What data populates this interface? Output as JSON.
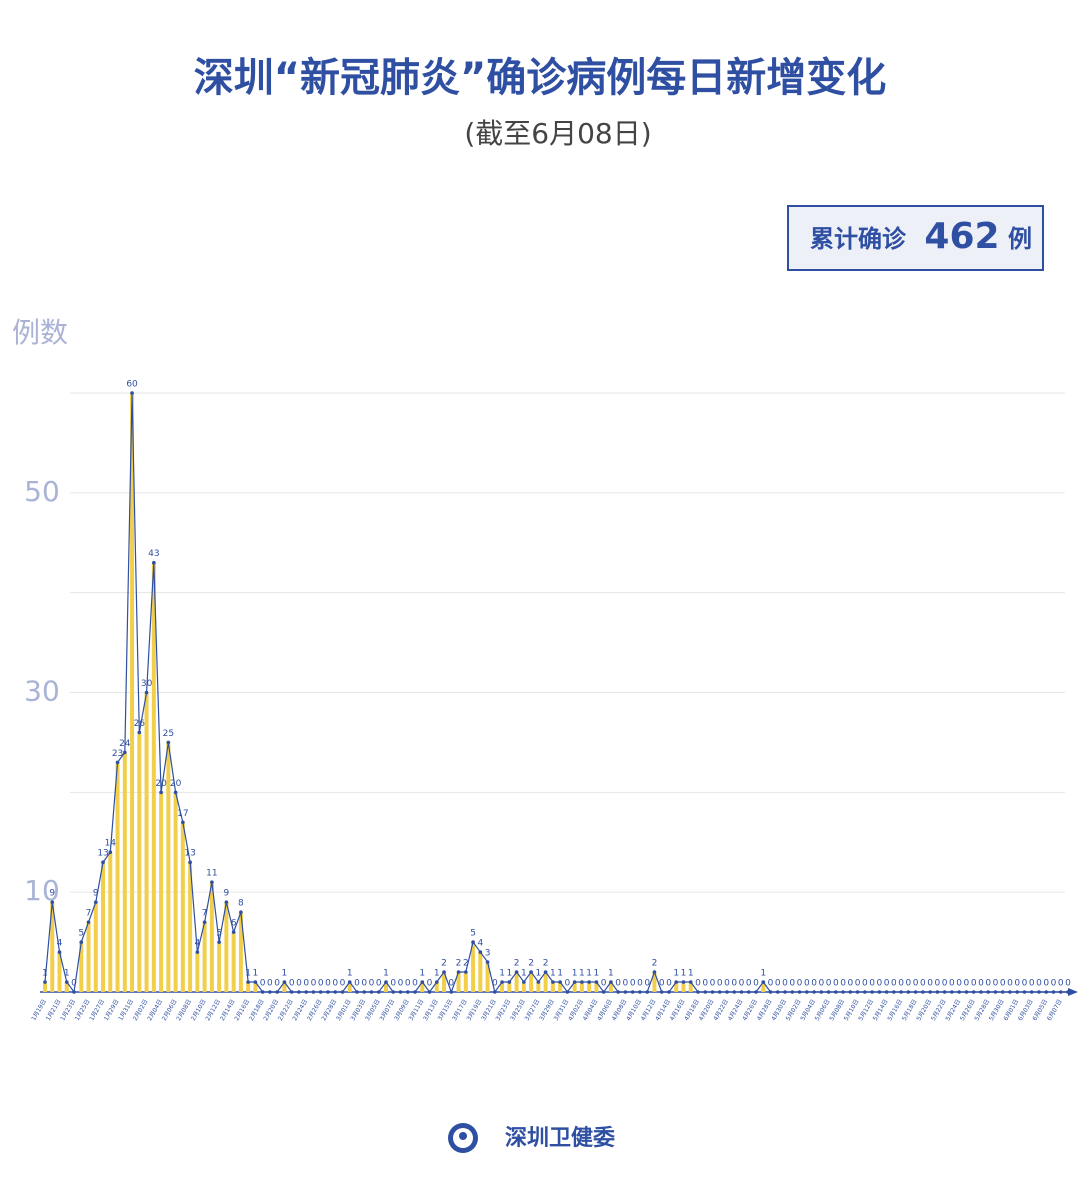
{
  "chart_data": {
    "type": "line",
    "title": "深圳“新冠肺炎”确诊病例每日新增变化",
    "subtitle": "(截至6月08日)",
    "total_box": {
      "prefix": "累计确诊",
      "value": "462",
      "suffix": "例"
    },
    "y_label": "例数",
    "footer": "深圳卫健委",
    "color": "#2f4fa2",
    "fill_color": "#f2cf4a",
    "ylim": [
      0,
      60
    ],
    "yticks": [
      10,
      30,
      50
    ],
    "grid_lines": [
      10,
      20,
      30,
      40,
      50,
      60
    ],
    "categories": [
      "1月19日",
      null,
      "1月21日",
      null,
      "1月23日",
      null,
      "1月25日",
      null,
      "1月27日",
      null,
      "1月29日",
      null,
      "1月31日",
      null,
      "2月02日",
      null,
      "2月04日",
      null,
      "2月06日",
      null,
      "2月08日",
      null,
      "2月10日",
      null,
      "2月12日",
      null,
      "2月14日",
      null,
      "2月16日",
      null,
      "2月18日",
      null,
      "2月20日",
      null,
      "2月22日",
      null,
      "2月24日",
      null,
      "2月26日",
      null,
      "2月28日",
      null,
      "3月01日",
      null,
      "3月03日",
      null,
      "3月05日",
      null,
      "3月07日",
      null,
      "3月09日",
      null,
      "3月11日",
      null,
      "3月13日",
      null,
      "3月15日",
      null,
      "3月17日",
      null,
      "3月19日",
      null,
      "3月21日",
      null,
      "3月23日",
      null,
      "3月25日",
      null,
      "3月27日",
      null,
      "3月29日",
      null,
      "3月31日",
      null,
      "4月02日",
      null,
      "4月04日",
      null,
      "4月06日",
      null,
      "4月08日",
      null,
      "4月10日",
      null,
      "4月12日",
      null,
      "4月14日",
      null,
      "4月16日",
      null,
      "4月18日",
      null,
      "4月20日",
      null,
      "4月22日",
      null,
      "4月24日",
      null,
      "4月26日",
      null,
      "4月28日",
      null,
      "4月30日",
      null,
      "5月02日",
      null,
      "5月04日",
      null,
      "5月06日",
      null,
      "5月08日",
      null,
      "5月10日",
      null,
      "5月12日",
      null,
      "5月14日",
      null,
      "5月16日",
      null,
      "5月18日",
      null,
      "5月20日",
      null,
      "5月22日",
      null,
      "5月24日",
      null,
      "5月26日",
      null,
      "5月28日",
      null,
      "5月30日",
      null,
      "6月01日",
      null,
      "6月03日",
      null,
      "6月05日",
      null,
      "6月07日",
      null
    ],
    "values": [
      1,
      9,
      4,
      1,
      0,
      5,
      7,
      9,
      13,
      14,
      23,
      24,
      60,
      26,
      30,
      43,
      20,
      25,
      20,
      17,
      13,
      4,
      7,
      11,
      5,
      9,
      6,
      8,
      1,
      1,
      0,
      0,
      0,
      1,
      0,
      0,
      0,
      0,
      0,
      0,
      0,
      0,
      1,
      0,
      0,
      0,
      0,
      1,
      0,
      0,
      0,
      0,
      1,
      0,
      1,
      2,
      0,
      2,
      2,
      5,
      4,
      3,
      0,
      1,
      1,
      2,
      1,
      2,
      1,
      2,
      1,
      1,
      0,
      1,
      1,
      1,
      1,
      0,
      1,
      0,
      0,
      0,
      0,
      0,
      2,
      0,
      0,
      1,
      1,
      1,
      0,
      0,
      0,
      0,
      0,
      0,
      0,
      0,
      0,
      1,
      0,
      0,
      0,
      0,
      0,
      0,
      0,
      0,
      0,
      0,
      0,
      0,
      0,
      0,
      0,
      0,
      0,
      0,
      0,
      0,
      0,
      0,
      0,
      0,
      0,
      0,
      0,
      0,
      0,
      0,
      0,
      0,
      0,
      0,
      0,
      0,
      0,
      0,
      0,
      0,
      0,
      0
    ]
  }
}
